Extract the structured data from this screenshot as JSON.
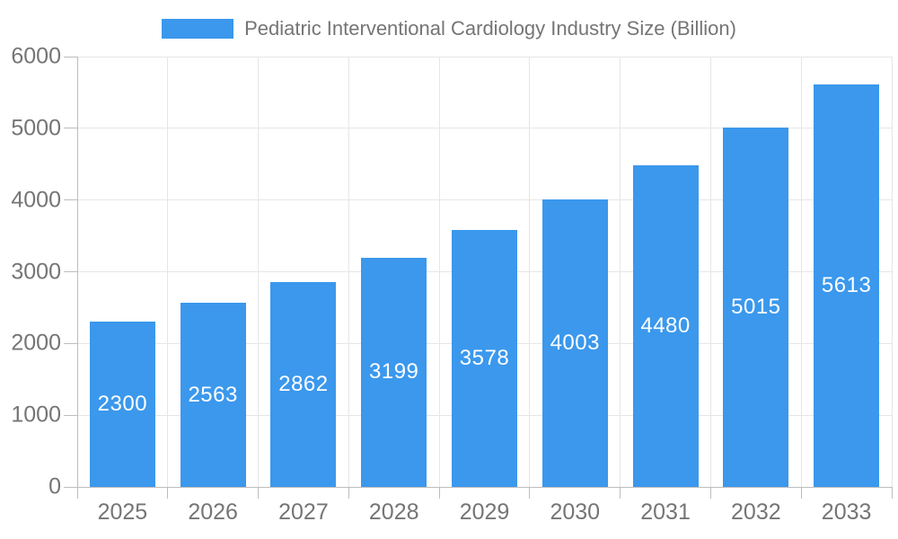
{
  "chart_data": {
    "type": "bar",
    "title": "Pediatric Interventional Cardiology Industry Size (Billion)",
    "categories": [
      "2025",
      "2026",
      "2027",
      "2028",
      "2029",
      "2030",
      "2031",
      "2032",
      "2033"
    ],
    "values": [
      2300,
      2563,
      2862,
      3199,
      3578,
      4003,
      4480,
      5015,
      5613
    ],
    "xlabel": "",
    "ylabel": "",
    "ylim": [
      0,
      6000
    ],
    "yticks": [
      0,
      1000,
      2000,
      3000,
      4000,
      5000,
      6000
    ],
    "grid": true,
    "legend_position": "top",
    "bar_color": "#3B98EC",
    "value_label_color": "#FFFFFF",
    "axis_text_color": "#757575",
    "grid_color": "#E6E6E6",
    "axis_line_color": "#BDBDBD",
    "background": "#FFFFFF"
  }
}
